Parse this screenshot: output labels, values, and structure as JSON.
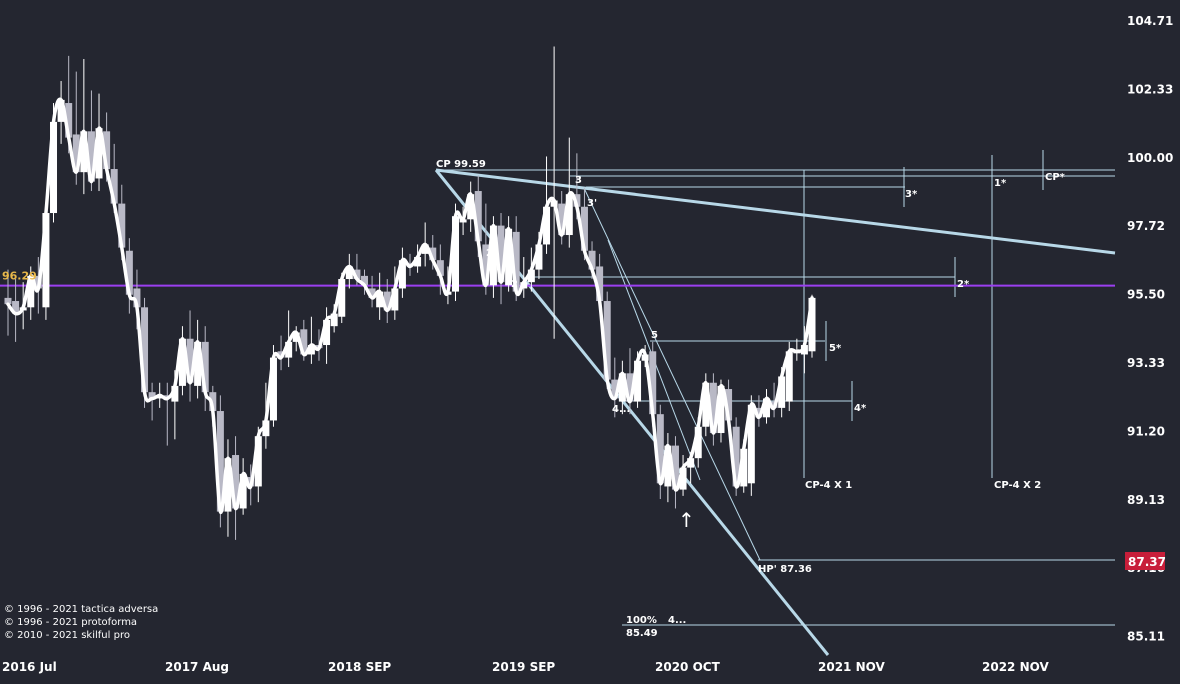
{
  "chart_data": {
    "type": "candlestick",
    "y_ticks": [
      "104.71",
      "102.33",
      "100.00",
      "97.72",
      "95.50",
      "93.33",
      "91.20",
      "89.13",
      "87.16",
      "85.11"
    ],
    "y_range": [
      84.4,
      105.5
    ],
    "x_ticks": [
      "2016 Jul",
      "2017 Aug",
      "2018 SEP",
      "2019 SEP",
      "2020 OCT",
      "2021 NOV",
      "2022 NOV"
    ],
    "price_tag": "87.37",
    "hline_label": "96.29",
    "hline_value": 96.29,
    "annotations": {
      "cp": "CP 99.59",
      "hp": "HP' 87.36",
      "pct": "100%",
      "pct_val": "85.49",
      "pct_tail": "4...",
      "n2": "2",
      "n2p": "2'",
      "n3": "3",
      "n3p": "3'",
      "n4": "4...",
      "n5": "5",
      "s3": "3*",
      "s1": "1*",
      "scp": "CP*",
      "s2": "2*",
      "s5": "5*",
      "s4": "4*",
      "cp4x1": "CP-4 X 1",
      "cp4x2": "CP-4 X 2",
      "arrow": "↑"
    },
    "copyright": [
      "© 1996 - 2021 tactica adversa",
      "© 1996 - 2021 protoforma",
      "© 2010 - 2021 skilful pro"
    ],
    "candles": [
      {
        "o": 95.9,
        "c": 95.7,
        "h": 96.8,
        "l": 94.7
      },
      {
        "o": 95.8,
        "c": 95.4,
        "h": 96.5,
        "l": 94.5
      },
      {
        "o": 95.5,
        "c": 95.6,
        "h": 96.4,
        "l": 94.9
      },
      {
        "o": 95.6,
        "c": 96.6,
        "h": 96.9,
        "l": 95.2
      },
      {
        "o": 96.6,
        "c": 96.2,
        "h": 97.2,
        "l": 95.4
      },
      {
        "o": 95.6,
        "c": 98.6,
        "h": 98.9,
        "l": 95.2
      },
      {
        "o": 98.6,
        "c": 101.5,
        "h": 102.1,
        "l": 98.3
      },
      {
        "o": 101.5,
        "c": 102.2,
        "h": 102.8,
        "l": 100.8
      },
      {
        "o": 102.1,
        "c": 101.0,
        "h": 103.6,
        "l": 100.5
      },
      {
        "o": 101.1,
        "c": 99.9,
        "h": 103.1,
        "l": 99.5
      },
      {
        "o": 99.9,
        "c": 101.2,
        "h": 103.5,
        "l": 99.2
      },
      {
        "o": 101.2,
        "c": 99.6,
        "h": 102.5,
        "l": 99.3
      },
      {
        "o": 99.7,
        "c": 101.3,
        "h": 102.4,
        "l": 99.3
      },
      {
        "o": 101.2,
        "c": 100.0,
        "h": 101.8,
        "l": 99.6
      },
      {
        "o": 100.0,
        "c": 98.9,
        "h": 100.8,
        "l": 98.6
      },
      {
        "o": 98.9,
        "c": 97.5,
        "h": 99.5,
        "l": 97.1
      },
      {
        "o": 97.4,
        "c": 96.0,
        "h": 97.8,
        "l": 95.4
      },
      {
        "o": 96.2,
        "c": 95.6,
        "h": 96.8,
        "l": 94.9
      },
      {
        "o": 95.6,
        "c": 92.9,
        "h": 95.9,
        "l": 92.4
      },
      {
        "o": 92.9,
        "c": 92.7,
        "h": 93.2,
        "l": 92.0
      },
      {
        "o": 92.7,
        "c": 92.8,
        "h": 93.2,
        "l": 92.4
      },
      {
        "o": 92.8,
        "c": 92.7,
        "h": 93.2,
        "l": 91.2
      },
      {
        "o": 92.6,
        "c": 93.1,
        "h": 93.6,
        "l": 91.4
      },
      {
        "o": 93.1,
        "c": 94.6,
        "h": 95.0,
        "l": 92.8
      },
      {
        "o": 94.6,
        "c": 93.2,
        "h": 95.5,
        "l": 92.6
      },
      {
        "o": 93.1,
        "c": 94.5,
        "h": 95.2,
        "l": 92.7
      },
      {
        "o": 94.5,
        "c": 92.9,
        "h": 95.0,
        "l": 92.3
      },
      {
        "o": 92.9,
        "c": 92.3,
        "h": 93.1,
        "l": 91.8
      },
      {
        "o": 92.3,
        "c": 89.1,
        "h": 92.8,
        "l": 88.6
      },
      {
        "o": 89.1,
        "c": 90.8,
        "h": 91.4,
        "l": 88.3
      },
      {
        "o": 90.9,
        "c": 89.2,
        "h": 91.5,
        "l": 88.2
      },
      {
        "o": 89.2,
        "c": 90.3,
        "h": 90.8,
        "l": 89.0
      },
      {
        "o": 90.2,
        "c": 89.9,
        "h": 90.6,
        "l": 89.3
      },
      {
        "o": 89.9,
        "c": 91.5,
        "h": 91.8,
        "l": 89.4
      },
      {
        "o": 91.5,
        "c": 92.0,
        "h": 93.2,
        "l": 91.1
      },
      {
        "o": 92.0,
        "c": 94.0,
        "h": 94.4,
        "l": 91.8
      },
      {
        "o": 94.2,
        "c": 94.0,
        "h": 94.7,
        "l": 93.6
      },
      {
        "o": 94.0,
        "c": 94.5,
        "h": 95.5,
        "l": 93.7
      },
      {
        "o": 94.5,
        "c": 94.8,
        "h": 95.0,
        "l": 94.2
      },
      {
        "o": 94.9,
        "c": 94.1,
        "h": 95.2,
        "l": 93.9
      },
      {
        "o": 94.1,
        "c": 94.4,
        "h": 95.3,
        "l": 93.8
      },
      {
        "o": 94.4,
        "c": 94.3,
        "h": 94.9,
        "l": 93.9
      },
      {
        "o": 94.4,
        "c": 95.2,
        "h": 95.6,
        "l": 93.8
      },
      {
        "o": 95.0,
        "c": 95.4,
        "h": 95.7,
        "l": 94.8
      },
      {
        "o": 95.3,
        "c": 96.5,
        "h": 96.7,
        "l": 95.1
      },
      {
        "o": 96.5,
        "c": 96.9,
        "h": 97.3,
        "l": 96.2
      },
      {
        "o": 96.8,
        "c": 96.5,
        "h": 97.3,
        "l": 96.3
      },
      {
        "o": 96.6,
        "c": 96.3,
        "h": 96.8,
        "l": 96.0
      },
      {
        "o": 96.2,
        "c": 95.9,
        "h": 96.6,
        "l": 95.6
      },
      {
        "o": 95.6,
        "c": 96.1,
        "h": 96.7,
        "l": 95.2
      },
      {
        "o": 96.1,
        "c": 95.5,
        "h": 96.5,
        "l": 95.1
      },
      {
        "o": 95.5,
        "c": 96.2,
        "h": 96.9,
        "l": 95.2
      },
      {
        "o": 96.2,
        "c": 97.1,
        "h": 97.5,
        "l": 95.9
      },
      {
        "o": 97.0,
        "c": 96.9,
        "h": 97.3,
        "l": 96.6
      },
      {
        "o": 96.9,
        "c": 97.2,
        "h": 97.6,
        "l": 96.7
      },
      {
        "o": 97.3,
        "c": 97.6,
        "h": 98.3,
        "l": 96.9
      },
      {
        "o": 97.5,
        "c": 97.1,
        "h": 97.9,
        "l": 96.8
      },
      {
        "o": 97.1,
        "c": 96.6,
        "h": 97.6,
        "l": 96.0
      },
      {
        "o": 96.0,
        "c": 96.1,
        "h": 96.9,
        "l": 95.7
      },
      {
        "o": 96.1,
        "c": 98.5,
        "h": 98.9,
        "l": 95.8
      },
      {
        "o": 98.3,
        "c": 98.4,
        "h": 98.8,
        "l": 97.9
      },
      {
        "o": 98.4,
        "c": 99.2,
        "h": 99.6,
        "l": 98.0
      },
      {
        "o": 99.3,
        "c": 97.7,
        "h": 99.8,
        "l": 97.2
      },
      {
        "o": 97.6,
        "c": 96.3,
        "h": 98.9,
        "l": 96.0
      },
      {
        "o": 96.3,
        "c": 98.2,
        "h": 98.5,
        "l": 95.9
      },
      {
        "o": 98.2,
        "c": 96.4,
        "h": 98.6,
        "l": 95.7
      },
      {
        "o": 96.3,
        "c": 98.1,
        "h": 98.5,
        "l": 96.1
      },
      {
        "o": 98.0,
        "c": 96.1,
        "h": 98.5,
        "l": 95.8
      },
      {
        "o": 96.2,
        "c": 96.4,
        "h": 97.2,
        "l": 95.9
      },
      {
        "o": 96.4,
        "c": 96.8,
        "h": 97.5,
        "l": 96.1
      },
      {
        "o": 96.8,
        "c": 97.6,
        "h": 98.0,
        "l": 96.5
      },
      {
        "o": 97.6,
        "c": 98.8,
        "h": 100.4,
        "l": 97.3
      },
      {
        "o": 98.8,
        "c": 99.0,
        "h": 103.9,
        "l": 94.6
      },
      {
        "o": 98.9,
        "c": 97.9,
        "h": 99.3,
        "l": 97.6
      },
      {
        "o": 97.9,
        "c": 99.2,
        "h": 101.0,
        "l": 97.5
      },
      {
        "o": 99.2,
        "c": 98.8,
        "h": 100.5,
        "l": 98.4
      },
      {
        "o": 98.8,
        "c": 97.4,
        "h": 99.4,
        "l": 97.1
      },
      {
        "o": 97.4,
        "c": 96.8,
        "h": 97.7,
        "l": 96.5
      },
      {
        "o": 96.9,
        "c": 95.8,
        "h": 97.3,
        "l": 95.5
      },
      {
        "o": 95.8,
        "c": 93.3,
        "h": 96.1,
        "l": 93.0
      },
      {
        "o": 93.3,
        "c": 92.7,
        "h": 94.0,
        "l": 92.1
      },
      {
        "o": 92.6,
        "c": 93.5,
        "h": 93.9,
        "l": 92.2
      },
      {
        "o": 93.5,
        "c": 92.6,
        "h": 94.3,
        "l": 92.2
      },
      {
        "o": 92.6,
        "c": 93.9,
        "h": 94.2,
        "l": 92.4
      },
      {
        "o": 93.9,
        "c": 94.1,
        "h": 94.4,
        "l": 93.7
      },
      {
        "o": 94.2,
        "c": 92.2,
        "h": 94.5,
        "l": 91.8
      },
      {
        "o": 92.2,
        "c": 90.0,
        "h": 92.5,
        "l": 89.5
      },
      {
        "o": 89.9,
        "c": 91.2,
        "h": 91.6,
        "l": 89.4
      },
      {
        "o": 91.2,
        "c": 89.8,
        "h": 91.5,
        "l": 89.2
      },
      {
        "o": 89.8,
        "c": 90.5,
        "h": 90.9,
        "l": 89.6
      },
      {
        "o": 90.5,
        "c": 90.8,
        "h": 91.0,
        "l": 90.0
      },
      {
        "o": 90.8,
        "c": 91.8,
        "h": 92.1,
        "l": 90.5
      },
      {
        "o": 91.8,
        "c": 93.2,
        "h": 93.5,
        "l": 91.5
      },
      {
        "o": 93.2,
        "c": 91.6,
        "h": 93.5,
        "l": 91.2
      },
      {
        "o": 91.6,
        "c": 93.1,
        "h": 93.3,
        "l": 91.3
      },
      {
        "o": 93.0,
        "c": 92.0,
        "h": 93.3,
        "l": 91.7
      },
      {
        "o": 91.8,
        "c": 89.9,
        "h": 92.1,
        "l": 89.6
      },
      {
        "o": 89.9,
        "c": 91.1,
        "h": 91.4,
        "l": 89.7
      },
      {
        "o": 90.0,
        "c": 92.5,
        "h": 92.8,
        "l": 89.6
      },
      {
        "o": 92.4,
        "c": 92.1,
        "h": 92.8,
        "l": 91.8
      },
      {
        "o": 92.1,
        "c": 92.7,
        "h": 93.0,
        "l": 91.9
      },
      {
        "o": 92.6,
        "c": 92.4,
        "h": 93.2,
        "l": 92.1
      },
      {
        "o": 92.4,
        "c": 93.4,
        "h": 93.7,
        "l": 92.1
      },
      {
        "o": 92.6,
        "c": 94.2,
        "h": 94.5,
        "l": 92.3
      },
      {
        "o": 94.2,
        "c": 94.2,
        "h": 94.6,
        "l": 93.9
      },
      {
        "o": 94.1,
        "c": 94.4,
        "h": 95.0,
        "l": 93.5
      },
      {
        "o": 94.2,
        "c": 95.9,
        "h": 96.0,
        "l": 94.0
      }
    ]
  }
}
